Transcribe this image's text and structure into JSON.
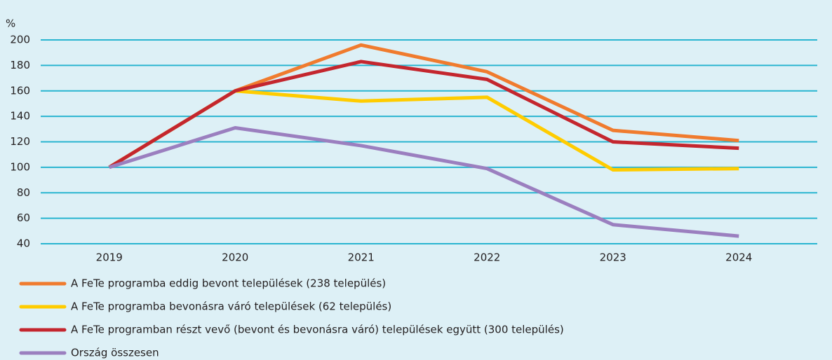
{
  "chart_data": {
    "type": "line",
    "y_label": "%",
    "categories": [
      "2019",
      "2020",
      "2021",
      "2022",
      "2023",
      "2024"
    ],
    "series": [
      {
        "name": "A FeTe programba eddig bevont települések (238 település)",
        "color": "#f07b2e",
        "values": [
          100,
          160,
          196,
          175,
          129,
          121
        ]
      },
      {
        "name": "A FeTe programba bevonásra váró települések  (62 település)",
        "color": "#ffcc00",
        "values": [
          100,
          160,
          152,
          155,
          98,
          99
        ]
      },
      {
        "name": "A FeTe programban részt vevő (bevont és bevonásra váró) települések együtt (300 település)",
        "color": "#c4262e",
        "values": [
          100,
          160,
          183,
          169,
          120,
          115
        ]
      },
      {
        "name": "Ország összesen",
        "color": "#9b7fbf",
        "values": [
          100,
          131,
          117,
          99,
          55,
          46
        ]
      }
    ],
    "ylim": [
      40,
      200
    ],
    "yticks": [
      40,
      60,
      80,
      100,
      120,
      140,
      160,
      180,
      200
    ],
    "grid": true
  }
}
